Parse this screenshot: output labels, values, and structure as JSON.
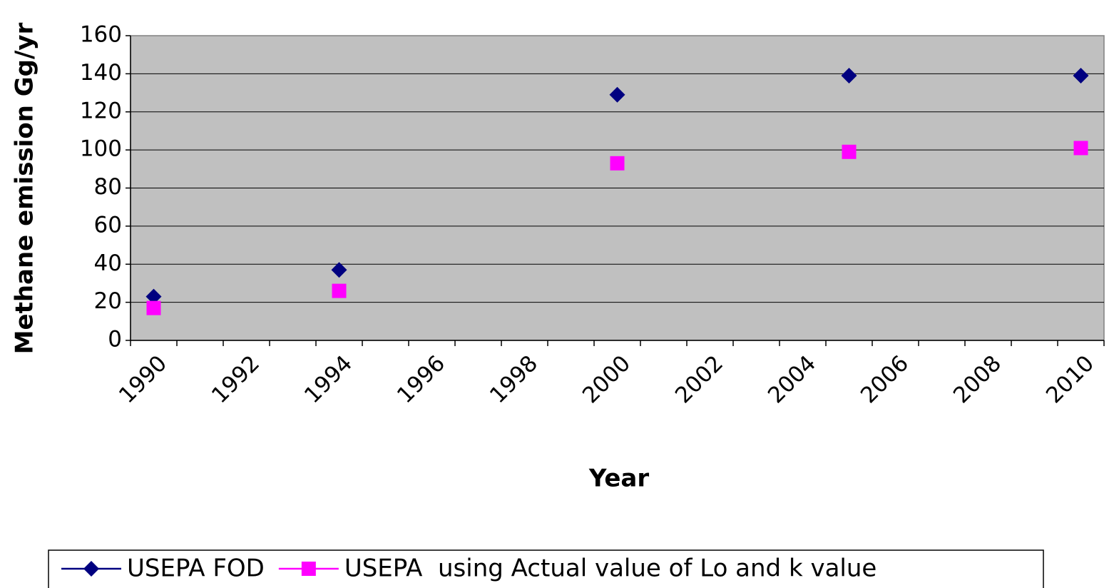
{
  "chart_data": {
    "type": "scatter",
    "x_label": "Year",
    "y_label": "Methane emission Gg/yr",
    "categories": [
      "1990",
      null,
      "1992",
      null,
      "1994",
      null,
      "1996",
      null,
      "1998",
      null,
      "2000",
      null,
      "2002",
      null,
      "2004",
      null,
      "2006",
      null,
      "2008",
      null,
      "2010"
    ],
    "series": [
      {
        "name": "USEPA FOD",
        "color": "#000080",
        "marker": "diamond",
        "values": [
          23,
          null,
          null,
          null,
          37,
          null,
          null,
          null,
          null,
          null,
          129,
          null,
          null,
          null,
          null,
          139,
          null,
          null,
          null,
          null,
          139
        ]
      },
      {
        "name": "USEPA  using Actual value of Lo and k value",
        "color": "#ff00ff",
        "marker": "square",
        "values": [
          17,
          null,
          null,
          null,
          26,
          null,
          null,
          null,
          null,
          null,
          93,
          null,
          null,
          null,
          null,
          99,
          null,
          null,
          null,
          null,
          101
        ]
      }
    ],
    "ylim": [
      0,
      160
    ],
    "yticks": [
      0,
      20,
      40,
      60,
      80,
      100,
      120,
      140,
      160
    ],
    "grid": true,
    "plot_background": "#c0c0c0",
    "legend_position": "bottom"
  }
}
